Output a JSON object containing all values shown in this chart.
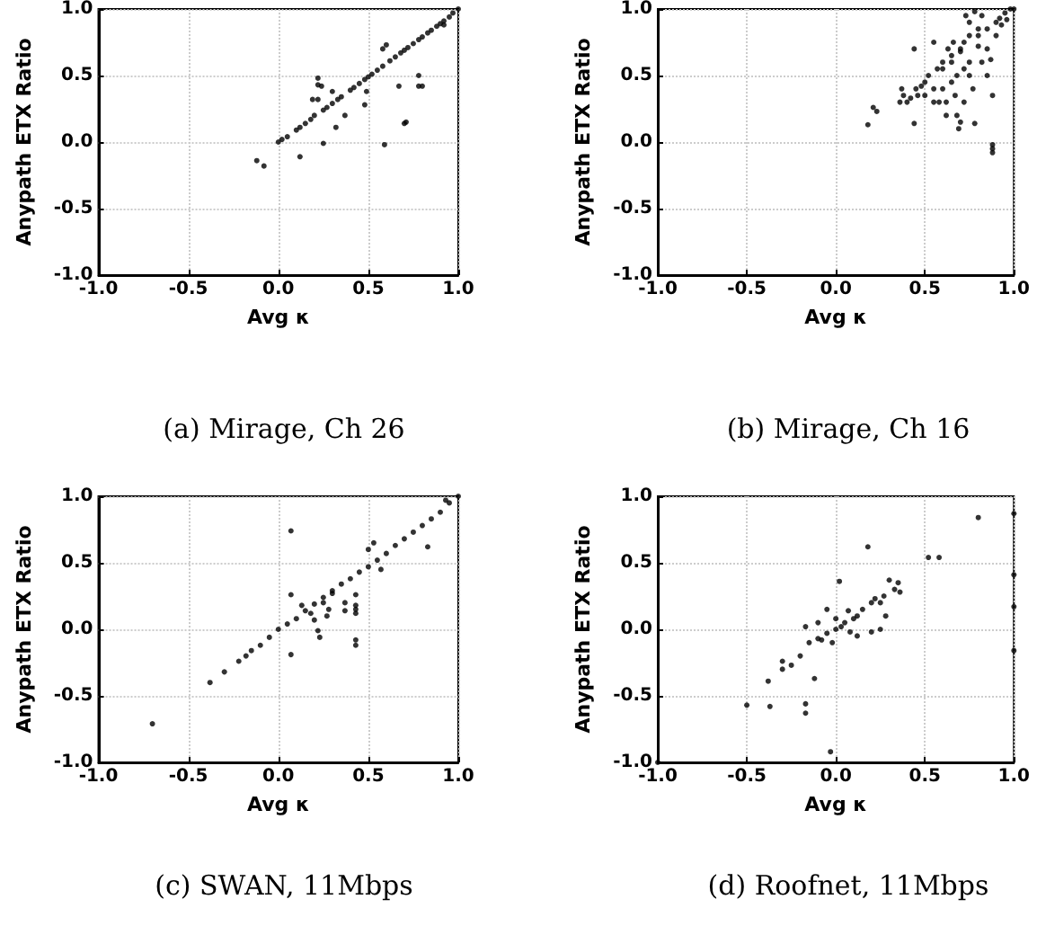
{
  "chart_data": [
    {
      "type": "scatter",
      "title": "(a) Mirage, Ch 26",
      "xlabel": "Avg κ",
      "ylabel": "Anypath ETX Ratio",
      "marker": "circle",
      "grid": true,
      "xlim": [
        -1,
        1
      ],
      "ylim": [
        -1,
        1
      ],
      "xticks": [
        {
          "value": -1,
          "label": "-1.0"
        },
        {
          "value": -0.5,
          "label": "-0.5"
        },
        {
          "value": 0,
          "label": "0.0"
        },
        {
          "value": 0.5,
          "label": "0.5"
        },
        {
          "value": 1,
          "label": "1.0"
        }
      ],
      "yticks": [
        {
          "value": -1,
          "label": "-1.0"
        },
        {
          "value": -0.5,
          "label": "-0.5"
        },
        {
          "value": 0,
          "label": "0.0"
        },
        {
          "value": 0.5,
          "label": "0.5"
        },
        {
          "value": 1,
          "label": "1.0"
        }
      ],
      "series": [
        {
          "color": "#000000",
          "x": [
            -0.12,
            -0.08,
            0.12,
            0.25,
            0.22,
            0.22,
            0.24,
            0.19,
            0.22,
            0.3,
            0.32,
            0.37,
            0.48,
            0.49,
            0.58,
            0.6,
            0.59,
            0.67,
            0.71,
            0.7,
            0.78,
            0.78,
            0.8,
            0.92,
            0,
            0.02,
            0.05,
            0.1,
            0.12,
            0.15,
            0.18,
            0.2,
            0.25,
            0.27,
            0.3,
            0.33,
            0.35,
            0.4,
            0.42,
            0.45,
            0.48,
            0.5,
            0.52,
            0.55,
            0.58,
            0.62,
            0.65,
            0.68,
            0.7,
            0.72,
            0.75,
            0.78,
            0.8,
            0.83,
            0.85,
            0.88,
            0.9,
            0.92,
            0.95,
            0.97,
            1
          ],
          "values": [
            -0.14,
            -0.18,
            -0.11,
            -0.01,
            0.48,
            0.43,
            0.42,
            0.32,
            0.32,
            0.38,
            0.11,
            0.2,
            0.28,
            0.38,
            0.7,
            0.73,
            -0.02,
            0.42,
            0.15,
            0.14,
            0.5,
            0.42,
            0.42,
            0.88,
            0,
            0.02,
            0.04,
            0.09,
            0.11,
            0.14,
            0.17,
            0.2,
            0.24,
            0.26,
            0.29,
            0.32,
            0.34,
            0.39,
            0.41,
            0.44,
            0.47,
            0.49,
            0.51,
            0.54,
            0.57,
            0.61,
            0.64,
            0.67,
            0.69,
            0.71,
            0.74,
            0.77,
            0.79,
            0.82,
            0.84,
            0.87,
            0.89,
            0.91,
            0.94,
            0.97,
            1
          ]
        }
      ]
    },
    {
      "type": "scatter",
      "title": "(b) Mirage, Ch 16",
      "xlabel": "Avg κ",
      "ylabel": "Anypath ETX Ratio",
      "marker": "circle",
      "grid": true,
      "xlim": [
        -1,
        1
      ],
      "ylim": [
        -1,
        1
      ],
      "xticks": [
        {
          "value": -1,
          "label": "-1.0"
        },
        {
          "value": -0.5,
          "label": "-0.5"
        },
        {
          "value": 0,
          "label": "0.0"
        },
        {
          "value": 0.5,
          "label": "0.5"
        },
        {
          "value": 1,
          "label": "1.0"
        }
      ],
      "yticks": [
        {
          "value": -1,
          "label": "-1.0"
        },
        {
          "value": -0.5,
          "label": "-0.5"
        },
        {
          "value": 0,
          "label": "0.0"
        },
        {
          "value": 0.5,
          "label": "0.5"
        },
        {
          "value": 1,
          "label": "1.0"
        }
      ],
      "series": [
        {
          "color": "#000000",
          "x": [
            0.18,
            0.21,
            0.23,
            0.44,
            0.44,
            0.37,
            0.38,
            0.36,
            0.4,
            0.42,
            0.46,
            0.5,
            0.52,
            0.55,
            0.55,
            0.57,
            0.6,
            0.6,
            0.62,
            0.63,
            0.65,
            0.65,
            0.67,
            0.68,
            0.69,
            0.7,
            0.7,
            0.72,
            0.72,
            0.73,
            0.75,
            0.75,
            0.77,
            0.78,
            0.8,
            0.82,
            0.82,
            0.85,
            0.87,
            0.88,
            0.88,
            0.88,
            0.88,
            0.9,
            0.92,
            0.95,
            0.98,
            0.85,
            0.8,
            0.7,
            0.65,
            0.6,
            0.78,
            0.85,
            0.55,
            0.5,
            0.75,
            0.68,
            0.62,
            0.58,
            0.8,
            0.93,
            0.96,
            0.9,
            0.72,
            0.75,
            0.66,
            0.45,
            0.48,
            1
          ],
          "values": [
            0.13,
            0.26,
            0.23,
            0.7,
            0.14,
            0.4,
            0.35,
            0.3,
            0.3,
            0.33,
            0.35,
            0.45,
            0.5,
            0.75,
            0.3,
            0.55,
            0.6,
            0.4,
            0.3,
            0.7,
            0.65,
            0.45,
            0.35,
            0.2,
            0.1,
            0.15,
            0.7,
            0.75,
            0.55,
            0.95,
            0.8,
            0.9,
            0.4,
            0.14,
            0.85,
            0.95,
            0.6,
            0.5,
            0.62,
            0.35,
            -0.02,
            -0.05,
            -0.08,
            0.9,
            0.93,
            0.97,
            1,
            0.85,
            0.8,
            0.68,
            0.6,
            0.55,
            0.98,
            0.7,
            0.4,
            0.35,
            0.5,
            0.5,
            0.2,
            0.3,
            0.72,
            0.88,
            0.92,
            0.8,
            0.3,
            0.6,
            0.75,
            0.4,
            0.42,
            1
          ]
        }
      ]
    },
    {
      "type": "scatter",
      "title": "(c) SWAN, 11Mbps",
      "xlabel": "Avg κ",
      "ylabel": "Anypath ETX Ratio",
      "marker": "circle",
      "grid": true,
      "xlim": [
        -1,
        1
      ],
      "ylim": [
        -1,
        1
      ],
      "xticks": [
        {
          "value": -1,
          "label": "-1.0"
        },
        {
          "value": -0.5,
          "label": "-0.5"
        },
        {
          "value": 0,
          "label": "0.0"
        },
        {
          "value": 0.5,
          "label": "0.5"
        },
        {
          "value": 1,
          "label": "1.0"
        }
      ],
      "yticks": [
        {
          "value": -1,
          "label": "-1.0"
        },
        {
          "value": -0.5,
          "label": "-0.5"
        },
        {
          "value": 0,
          "label": "0.0"
        },
        {
          "value": 0.5,
          "label": "0.5"
        },
        {
          "value": 1,
          "label": "1.0"
        }
      ],
      "series": [
        {
          "color": "#000000",
          "x": [
            -0.7,
            -0.38,
            -0.3,
            -0.22,
            -0.18,
            -0.15,
            -0.1,
            -0.05,
            0,
            0.05,
            0.1,
            0.15,
            0.2,
            0.25,
            0.3,
            0.35,
            0.4,
            0.45,
            0.5,
            0.55,
            0.6,
            0.65,
            0.7,
            0.75,
            0.8,
            0.85,
            0.9,
            0.95,
            1,
            0.07,
            0.07,
            0.07,
            0.13,
            0.18,
            0.2,
            0.22,
            0.23,
            0.27,
            0.28,
            0.37,
            0.37,
            0.43,
            0.43,
            0.43,
            0.43,
            0.43,
            0.43,
            0.53,
            0.5,
            0.57,
            0.83,
            0.93,
            0.3,
            0.25
          ],
          "values": [
            -0.71,
            -0.4,
            -0.32,
            -0.24,
            -0.2,
            -0.16,
            -0.12,
            -0.06,
            0,
            0.04,
            0.08,
            0.14,
            0.19,
            0.24,
            0.29,
            0.34,
            0.38,
            0.43,
            0.47,
            0.52,
            0.57,
            0.63,
            0.68,
            0.73,
            0.78,
            0.83,
            0.88,
            0.95,
            1,
            0.74,
            0.26,
            -0.19,
            0.18,
            0.12,
            0.07,
            -0.01,
            -0.06,
            0.1,
            0.15,
            0.2,
            0.14,
            0.26,
            0.18,
            0.15,
            0.12,
            -0.08,
            -0.12,
            0.65,
            0.6,
            0.45,
            0.62,
            0.97,
            0.27,
            0.2
          ]
        }
      ]
    },
    {
      "type": "scatter",
      "title": "(d) Roofnet, 11Mbps",
      "xlabel": "Avg κ",
      "ylabel": "Anypath ETX Ratio",
      "marker": "circle",
      "grid": true,
      "xlim": [
        -1,
        1
      ],
      "ylim": [
        -1,
        1
      ],
      "xticks": [
        {
          "value": -1,
          "label": "-1.0"
        },
        {
          "value": -0.5,
          "label": "-0.5"
        },
        {
          "value": 0,
          "label": "0.0"
        },
        {
          "value": 0.5,
          "label": "0.5"
        },
        {
          "value": 1,
          "label": "1.0"
        }
      ],
      "yticks": [
        {
          "value": -1,
          "label": "-1.0"
        },
        {
          "value": -0.5,
          "label": "-0.5"
        },
        {
          "value": 0,
          "label": "0.0"
        },
        {
          "value": 0.5,
          "label": "0.5"
        },
        {
          "value": 1,
          "label": "1.0"
        }
      ],
      "series": [
        {
          "color": "#000000",
          "x": [
            -0.5,
            -0.37,
            -0.38,
            -0.3,
            -0.3,
            -0.25,
            -0.2,
            -0.17,
            -0.17,
            -0.17,
            -0.15,
            -0.1,
            -0.1,
            -0.05,
            -0.03,
            0,
            0.02,
            0.05,
            0.07,
            0.1,
            0.12,
            0.12,
            0.15,
            0.18,
            0.2,
            0.22,
            0.25,
            0.27,
            0.28,
            0.3,
            0.33,
            0.35,
            0.36,
            0.52,
            0.58,
            0.8,
            1,
            1,
            1,
            1,
            -1,
            -0.12,
            -0.05,
            0,
            0.08,
            0.03,
            -0.08,
            0.2,
            0.25,
            -0.02
          ],
          "values": [
            -0.57,
            -0.58,
            -0.39,
            -0.24,
            -0.3,
            -0.27,
            -0.2,
            -0.56,
            -0.63,
            0.02,
            -0.1,
            -0.07,
            0.05,
            -0.03,
            -0.92,
            0,
            0.36,
            0.05,
            0.14,
            0.08,
            0.1,
            -0.05,
            0.15,
            0.62,
            0.2,
            0.23,
            0,
            0.25,
            0.1,
            0.37,
            0.3,
            0.35,
            0.28,
            0.54,
            0.54,
            0.84,
            0.87,
            0.41,
            0.17,
            -0.16,
            -1,
            -0.37,
            0.15,
            0.08,
            -0.02,
            0.02,
            -0.08,
            -0.02,
            0.2,
            -0.1
          ]
        }
      ]
    }
  ]
}
